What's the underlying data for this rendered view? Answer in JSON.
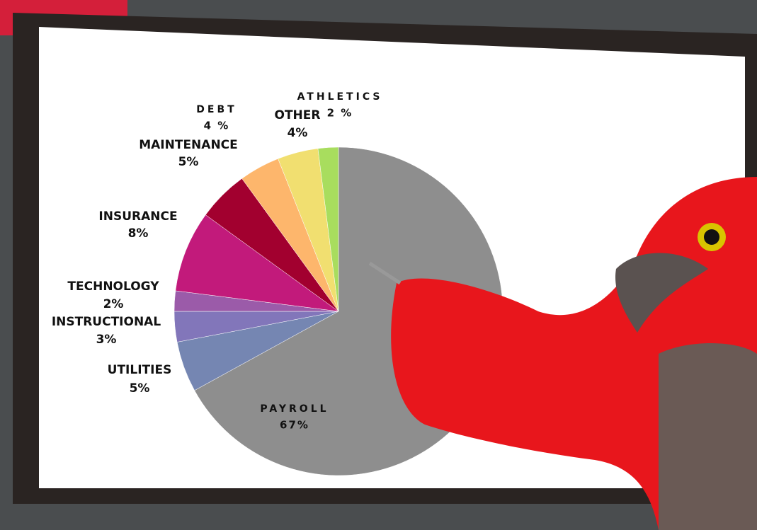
{
  "chart_data": {
    "type": "pie",
    "categories": [
      "PAYROLL",
      "UTILITIES",
      "INSTRUCTIONAL",
      "TECHNOLOGY",
      "INSURANCE",
      "MAINTENANCE",
      "DEBT",
      "OTHER",
      "ATHLETICS"
    ],
    "values": [
      67,
      5,
      3,
      2,
      8,
      5,
      4,
      4,
      2
    ],
    "value_labels": [
      "67%",
      "5%",
      "3%",
      "2%",
      "8%",
      "5%",
      "4 %",
      "4%",
      "2 %"
    ],
    "colors": [
      "#8e8e8e",
      "#7586b2",
      "#8276ba",
      "#9b5ba9",
      "#c21a7b",
      "#a2002f",
      "#fdb66c",
      "#f1df70",
      "#a8dd5e"
    ]
  }
}
